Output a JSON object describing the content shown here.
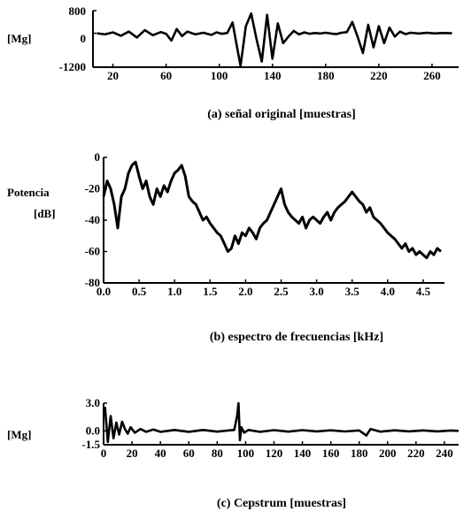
{
  "chart_data": [
    {
      "type": "line",
      "caption": "(a) señal original    [muestras]",
      "ylabel": "[Mg]",
      "xlim": [
        5,
        280
      ],
      "ylim": [
        -1200,
        800
      ],
      "xticks": [
        20,
        60,
        100,
        140,
        180,
        220,
        260
      ],
      "yticks": [
        800,
        0,
        -1200
      ],
      "series": [
        {
          "points": [
            [
              8,
              0
            ],
            [
              14,
              -40
            ],
            [
              20,
              30
            ],
            [
              26,
              -90
            ],
            [
              32,
              60
            ],
            [
              38,
              -150
            ],
            [
              44,
              110
            ],
            [
              50,
              -70
            ],
            [
              56,
              40
            ],
            [
              60,
              -20
            ],
            [
              64,
              -260
            ],
            [
              68,
              150
            ],
            [
              72,
              -100
            ],
            [
              76,
              60
            ],
            [
              82,
              -40
            ],
            [
              88,
              20
            ],
            [
              94,
              -60
            ],
            [
              98,
              30
            ],
            [
              102,
              -20
            ],
            [
              106,
              10
            ],
            [
              110,
              380
            ],
            [
              113,
              -400
            ],
            [
              116,
              -1150
            ],
            [
              120,
              250
            ],
            [
              124,
              700
            ],
            [
              128,
              -200
            ],
            [
              132,
              -1000
            ],
            [
              136,
              650
            ],
            [
              140,
              -900
            ],
            [
              144,
              350
            ],
            [
              148,
              -350
            ],
            [
              152,
              -120
            ],
            [
              156,
              80
            ],
            [
              160,
              -40
            ],
            [
              164,
              30
            ],
            [
              168,
              -20
            ],
            [
              172,
              10
            ],
            [
              176,
              -10
            ],
            [
              180,
              20
            ],
            [
              184,
              -10
            ],
            [
              188,
              -30
            ],
            [
              192,
              20
            ],
            [
              196,
              40
            ],
            [
              200,
              400
            ],
            [
              204,
              -120
            ],
            [
              208,
              -700
            ],
            [
              212,
              300
            ],
            [
              216,
              -500
            ],
            [
              220,
              250
            ],
            [
              224,
              -350
            ],
            [
              228,
              200
            ],
            [
              232,
              -120
            ],
            [
              236,
              60
            ],
            [
              240,
              -30
            ],
            [
              244,
              20
            ],
            [
              250,
              -10
            ],
            [
              256,
              15
            ],
            [
              262,
              -5
            ],
            [
              268,
              10
            ],
            [
              275,
              0
            ]
          ]
        }
      ]
    },
    {
      "type": "line",
      "caption": "(b) espectro de frecuencias    [kHz]",
      "ylabel_lines": [
        "Potencia",
        "[dB]"
      ],
      "xlim": [
        0,
        4.8
      ],
      "ylim": [
        -80,
        0
      ],
      "xticks": [
        "0.0",
        "0.5",
        "1.0",
        "1.5",
        "2.0",
        "2.5",
        "3.0",
        "3.5",
        "4.0",
        "4.5"
      ],
      "yticks": [
        0,
        -20,
        -40,
        -60,
        -80
      ],
      "series": [
        {
          "points": [
            [
              0.0,
              -25
            ],
            [
              0.05,
              -15
            ],
            [
              0.1,
              -20
            ],
            [
              0.15,
              -30
            ],
            [
              0.2,
              -45
            ],
            [
              0.25,
              -25
            ],
            [
              0.3,
              -20
            ],
            [
              0.35,
              -10
            ],
            [
              0.4,
              -5
            ],
            [
              0.45,
              -3
            ],
            [
              0.5,
              -12
            ],
            [
              0.55,
              -20
            ],
            [
              0.6,
              -15
            ],
            [
              0.65,
              -25
            ],
            [
              0.7,
              -30
            ],
            [
              0.75,
              -20
            ],
            [
              0.8,
              -25
            ],
            [
              0.85,
              -18
            ],
            [
              0.9,
              -22
            ],
            [
              0.95,
              -15
            ],
            [
              1.0,
              -10
            ],
            [
              1.05,
              -8
            ],
            [
              1.1,
              -5
            ],
            [
              1.15,
              -12
            ],
            [
              1.2,
              -25
            ],
            [
              1.25,
              -28
            ],
            [
              1.3,
              -30
            ],
            [
              1.35,
              -35
            ],
            [
              1.4,
              -40
            ],
            [
              1.45,
              -38
            ],
            [
              1.5,
              -42
            ],
            [
              1.55,
              -45
            ],
            [
              1.6,
              -48
            ],
            [
              1.65,
              -50
            ],
            [
              1.7,
              -55
            ],
            [
              1.75,
              -60
            ],
            [
              1.8,
              -58
            ],
            [
              1.85,
              -50
            ],
            [
              1.9,
              -55
            ],
            [
              1.95,
              -48
            ],
            [
              2.0,
              -50
            ],
            [
              2.05,
              -45
            ],
            [
              2.1,
              -48
            ],
            [
              2.15,
              -52
            ],
            [
              2.2,
              -45
            ],
            [
              2.25,
              -42
            ],
            [
              2.3,
              -40
            ],
            [
              2.35,
              -35
            ],
            [
              2.4,
              -30
            ],
            [
              2.45,
              -25
            ],
            [
              2.5,
              -20
            ],
            [
              2.55,
              -30
            ],
            [
              2.6,
              -35
            ],
            [
              2.65,
              -38
            ],
            [
              2.7,
              -40
            ],
            [
              2.75,
              -42
            ],
            [
              2.8,
              -38
            ],
            [
              2.85,
              -45
            ],
            [
              2.9,
              -40
            ],
            [
              2.95,
              -38
            ],
            [
              3.0,
              -40
            ],
            [
              3.05,
              -42
            ],
            [
              3.1,
              -38
            ],
            [
              3.15,
              -35
            ],
            [
              3.2,
              -40
            ],
            [
              3.25,
              -35
            ],
            [
              3.3,
              -32
            ],
            [
              3.35,
              -30
            ],
            [
              3.4,
              -28
            ],
            [
              3.45,
              -25
            ],
            [
              3.5,
              -22
            ],
            [
              3.55,
              -25
            ],
            [
              3.6,
              -28
            ],
            [
              3.65,
              -30
            ],
            [
              3.7,
              -35
            ],
            [
              3.75,
              -32
            ],
            [
              3.8,
              -38
            ],
            [
              3.85,
              -40
            ],
            [
              3.9,
              -42
            ],
            [
              3.95,
              -45
            ],
            [
              4.0,
              -48
            ],
            [
              4.05,
              -50
            ],
            [
              4.1,
              -52
            ],
            [
              4.15,
              -55
            ],
            [
              4.2,
              -58
            ],
            [
              4.25,
              -55
            ],
            [
              4.3,
              -60
            ],
            [
              4.35,
              -58
            ],
            [
              4.4,
              -62
            ],
            [
              4.45,
              -60
            ],
            [
              4.5,
              -62
            ],
            [
              4.55,
              -64
            ],
            [
              4.6,
              -60
            ],
            [
              4.65,
              -62
            ],
            [
              4.7,
              -58
            ],
            [
              4.75,
              -60
            ]
          ]
        }
      ]
    },
    {
      "type": "line",
      "caption": "(c) Cepstrum    [muestras]",
      "ylabel": "[Mg]",
      "xlim": [
        0,
        250
      ],
      "ylim": [
        -1.5,
        3.0
      ],
      "xticks": [
        0,
        20,
        40,
        60,
        80,
        100,
        120,
        140,
        160,
        180,
        200,
        220,
        240
      ],
      "yticks": [
        "3.0",
        "0.0",
        "-1.5"
      ],
      "series": [
        {
          "points": [
            [
              1,
              2.6
            ],
            [
              3,
              -1.2
            ],
            [
              5,
              1.6
            ],
            [
              7,
              -0.8
            ],
            [
              9,
              0.9
            ],
            [
              11,
              -0.4
            ],
            [
              13,
              1.0
            ],
            [
              15,
              0.2
            ],
            [
              17,
              -0.3
            ],
            [
              19,
              0.4
            ],
            [
              22,
              -0.2
            ],
            [
              26,
              0.2
            ],
            [
              30,
              -0.1
            ],
            [
              35,
              0.15
            ],
            [
              40,
              -0.1
            ],
            [
              50,
              0.1
            ],
            [
              60,
              -0.1
            ],
            [
              70,
              0.1
            ],
            [
              80,
              -0.08
            ],
            [
              88,
              0.05
            ],
            [
              92,
              0.1
            ],
            [
              94,
              1.6
            ],
            [
              95,
              3.0
            ],
            [
              96,
              -1.0
            ],
            [
              97,
              0.4
            ],
            [
              99,
              -0.2
            ],
            [
              102,
              0.1
            ],
            [
              110,
              -0.1
            ],
            [
              120,
              0.08
            ],
            [
              130,
              -0.08
            ],
            [
              140,
              0.08
            ],
            [
              150,
              -0.05
            ],
            [
              160,
              0.06
            ],
            [
              170,
              -0.06
            ],
            [
              180,
              0.05
            ],
            [
              185,
              -0.5
            ],
            [
              188,
              0.2
            ],
            [
              195,
              -0.08
            ],
            [
              205,
              0.06
            ],
            [
              215,
              -0.05
            ],
            [
              225,
              0.05
            ],
            [
              235,
              -0.05
            ],
            [
              245,
              0.04
            ],
            [
              250,
              0
            ]
          ]
        }
      ]
    }
  ]
}
